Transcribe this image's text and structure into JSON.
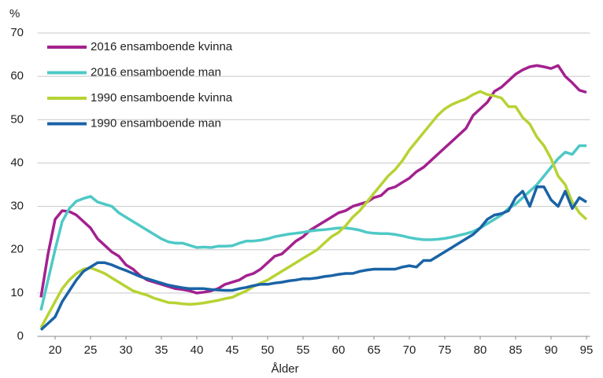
{
  "chart_data": {
    "type": "line",
    "y_unit_label": "%",
    "x_label": "Ålder",
    "x": [
      18,
      19,
      20,
      21,
      22,
      23,
      24,
      25,
      26,
      27,
      28,
      29,
      30,
      31,
      32,
      33,
      34,
      35,
      36,
      37,
      38,
      39,
      40,
      41,
      42,
      43,
      44,
      45,
      46,
      47,
      48,
      49,
      50,
      51,
      52,
      53,
      54,
      55,
      56,
      57,
      58,
      59,
      60,
      61,
      62,
      63,
      64,
      65,
      66,
      67,
      68,
      69,
      70,
      71,
      72,
      73,
      74,
      75,
      76,
      77,
      78,
      79,
      80,
      81,
      82,
      83,
      84,
      85,
      86,
      87,
      88,
      89,
      90,
      91,
      92,
      93,
      94,
      95
    ],
    "series": [
      {
        "name": "2016 ensamboende kvinna",
        "color": "#a3218f",
        "values": [
          9,
          19,
          27,
          29,
          28.8,
          28,
          26.5,
          25,
          22.5,
          21,
          19.5,
          18.5,
          16.5,
          15.5,
          14,
          13,
          12.5,
          12,
          11.5,
          11,
          10.8,
          10.5,
          10,
          10.2,
          10.5,
          11,
          12,
          12.5,
          13,
          14,
          14.5,
          15.5,
          17,
          18.5,
          19,
          20.5,
          22,
          23,
          24.5,
          25.5,
          26.5,
          27.5,
          28.5,
          29,
          30,
          30.5,
          31,
          32,
          32.5,
          34,
          34.5,
          35.5,
          36.5,
          38,
          39,
          40.5,
          42,
          43.5,
          45,
          46.5,
          48,
          51,
          52.5,
          54,
          56.5,
          57.5,
          59,
          60.5,
          61.5,
          62.2,
          62.5,
          62.2,
          61.8,
          62.5,
          60,
          58.5,
          56.8,
          56.3
        ]
      },
      {
        "name": "2016 ensamboende man",
        "color": "#4ec9c6",
        "values": [
          6,
          13,
          20,
          26.5,
          29.5,
          31.2,
          31.8,
          32.3,
          31,
          30.5,
          30,
          28.5,
          27.5,
          26.5,
          25.5,
          24.5,
          23.5,
          22.5,
          21.8,
          21.5,
          21.5,
          21,
          20.5,
          20.6,
          20.5,
          20.8,
          20.8,
          20.9,
          21.5,
          22,
          22,
          22.2,
          22.5,
          23,
          23.3,
          23.6,
          23.8,
          24,
          24.3,
          24.5,
          24.6,
          24.8,
          25,
          25,
          24.8,
          24.5,
          24,
          23.8,
          23.7,
          23.7,
          23.5,
          23.2,
          22.8,
          22.5,
          22.3,
          22.3,
          22.4,
          22.6,
          22.9,
          23.3,
          23.7,
          24.2,
          25,
          26,
          27,
          28,
          29.5,
          30.5,
          32,
          33.5,
          35,
          37,
          39,
          41,
          42.5,
          42,
          44,
          44
        ]
      },
      {
        "name": "1990 ensamboende kvinna",
        "color": "#b6d334",
        "values": [
          2,
          5,
          8,
          11,
          13,
          14.5,
          15.5,
          15.8,
          15.2,
          14.5,
          13.5,
          12.5,
          11.5,
          10.5,
          10,
          9.5,
          8.8,
          8.3,
          7.8,
          7.7,
          7.5,
          7.4,
          7.5,
          7.7,
          8,
          8.3,
          8.7,
          9,
          9.8,
          10.5,
          11.5,
          12.3,
          13,
          14,
          15,
          16,
          17,
          18,
          19,
          20,
          21.5,
          23,
          24,
          25.5,
          27.5,
          29,
          31,
          33,
          35,
          37,
          38.5,
          40.5,
          43,
          45,
          47,
          49,
          51,
          52.5,
          53.5,
          54.2,
          54.8,
          55.8,
          56.5,
          55.8,
          55.5,
          55,
          53,
          53,
          50.5,
          49,
          46,
          44,
          41,
          37,
          35,
          31,
          28.5,
          27
        ]
      },
      {
        "name": "1990 ensamboende man",
        "color": "#1a63a6",
        "values": [
          1.5,
          3,
          4.5,
          8,
          10.5,
          13,
          15,
          16,
          17,
          17,
          16.5,
          15.8,
          15.2,
          14.5,
          13.8,
          13.3,
          12.8,
          12.3,
          11.8,
          11.5,
          11.2,
          11,
          11,
          11,
          10.8,
          10.7,
          10.6,
          10.6,
          11,
          11.3,
          11.7,
          12,
          12,
          12.3,
          12.5,
          12.8,
          13,
          13.3,
          13.3,
          13.5,
          13.8,
          14,
          14.3,
          14.5,
          14.5,
          15,
          15.3,
          15.5,
          15.5,
          15.5,
          15.5,
          16,
          16.3,
          16,
          17.5,
          17.5,
          18.5,
          19.5,
          20.5,
          21.5,
          22.5,
          23.5,
          25,
          27,
          28,
          28.3,
          29,
          32,
          33.5,
          30,
          34.5,
          34.5,
          31.5,
          30,
          33.5,
          29.5,
          32,
          31
        ]
      }
    ],
    "xlim": [
      17.5,
      95.5
    ],
    "xticks": [
      20,
      25,
      30,
      35,
      40,
      45,
      50,
      55,
      60,
      65,
      70,
      75,
      80,
      85,
      90,
      95
    ],
    "ylim": [
      0,
      70
    ],
    "yticks": [
      0,
      10,
      20,
      30,
      40,
      50,
      60,
      70
    ],
    "grid": true,
    "legend": "upper left"
  }
}
